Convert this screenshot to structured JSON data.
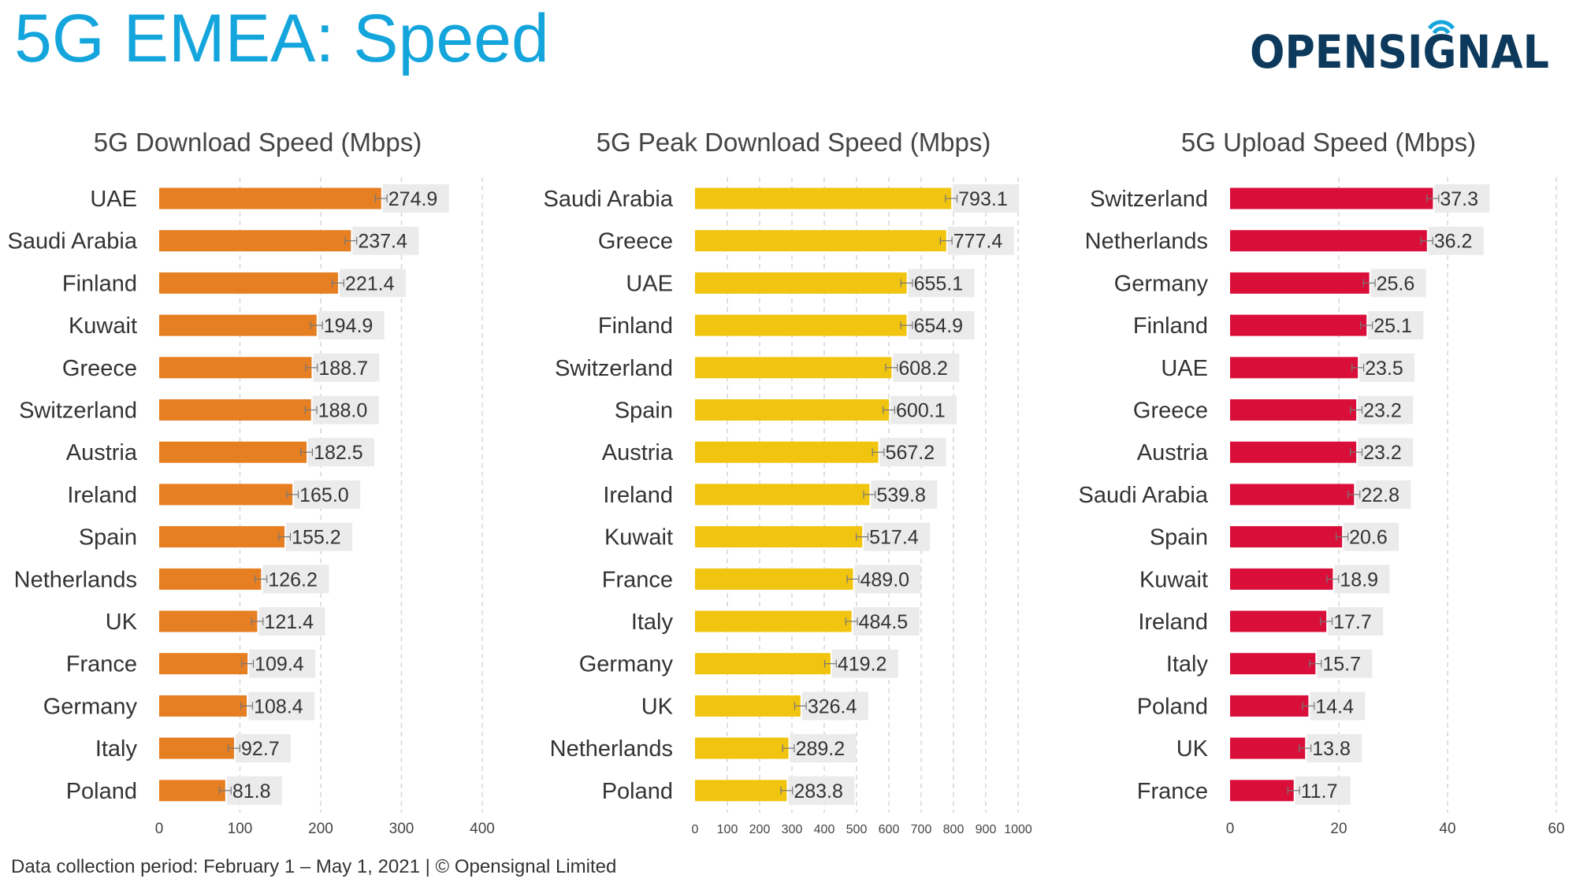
{
  "page": {
    "title": "5G EMEA: Speed",
    "logo": "OPENSIGNAL",
    "footer": "Data collection period: February 1 – May 1, 2021  |  © Opensignal Limited"
  },
  "colors": {
    "title": "#14a5dc",
    "logo": "#0d3a5c",
    "logo_accent": "#14a5dc",
    "download": "#e67e22",
    "peak": "#f1c40f",
    "upload": "#d90f3a",
    "label_bg": "#ebebeb"
  },
  "chart_data": [
    {
      "type": "bar",
      "orientation": "horizontal",
      "title": "5G Download Speed (Mbps)",
      "categories": [
        "UAE",
        "Saudi Arabia",
        "Finland",
        "Kuwait",
        "Greece",
        "Switzerland",
        "Austria",
        "Ireland",
        "Spain",
        "Netherlands",
        "UK",
        "France",
        "Germany",
        "Italy",
        "Poland"
      ],
      "values": [
        274.9,
        237.4,
        221.4,
        194.9,
        188.7,
        188.0,
        182.5,
        165.0,
        155.2,
        126.2,
        121.4,
        109.4,
        108.4,
        92.7,
        81.8
      ],
      "labels": [
        "274.9",
        "237.4",
        "221.4",
        "194.9",
        "188.7",
        "188.0",
        "182.5",
        "165.0",
        "155.2",
        "126.2",
        "121.4",
        "109.4",
        "108.4",
        "92.7",
        "81.8"
      ],
      "xlim": [
        0,
        400
      ],
      "xticks": [
        0,
        100,
        200,
        300,
        400
      ],
      "color": "#e67e22",
      "grid": true,
      "error_bars": true
    },
    {
      "type": "bar",
      "orientation": "horizontal",
      "title": "5G Peak Download Speed (Mbps)",
      "categories": [
        "Saudi Arabia",
        "Greece",
        "UAE",
        "Finland",
        "Switzerland",
        "Spain",
        "Austria",
        "Ireland",
        "Kuwait",
        "France",
        "Italy",
        "Germany",
        "UK",
        "Netherlands",
        "Poland"
      ],
      "values": [
        793.1,
        777.4,
        655.1,
        654.9,
        608.2,
        600.1,
        567.2,
        539.8,
        517.4,
        489.0,
        484.5,
        419.2,
        326.4,
        289.2,
        283.8
      ],
      "labels": [
        "793.1",
        "777.4",
        "655.1",
        "654.9",
        "608.2",
        "600.1",
        "567.2",
        "539.8",
        "517.4",
        "489.0",
        "484.5",
        "419.2",
        "326.4",
        "289.2",
        "283.8"
      ],
      "xlim": [
        0,
        1000
      ],
      "xticks": [
        0,
        100,
        200,
        300,
        400,
        500,
        600,
        700,
        800,
        900,
        1000
      ],
      "color": "#f1c40f",
      "grid": true,
      "error_bars": true
    },
    {
      "type": "bar",
      "orientation": "horizontal",
      "title": "5G Upload Speed (Mbps)",
      "categories": [
        "Switzerland",
        "Netherlands",
        "Germany",
        "Finland",
        "UAE",
        "Greece",
        "Austria",
        "Saudi Arabia",
        "Spain",
        "Kuwait",
        "Ireland",
        "Italy",
        "Poland",
        "UK",
        "France"
      ],
      "values": [
        37.3,
        36.2,
        25.6,
        25.1,
        23.5,
        23.2,
        23.2,
        22.8,
        20.6,
        18.9,
        17.7,
        15.7,
        14.4,
        13.8,
        11.7
      ],
      "labels": [
        "37.3",
        "36.2",
        "25.6",
        "25.1",
        "23.5",
        "23.2",
        "23.2",
        "22.8",
        "20.6",
        "18.9",
        "17.7",
        "15.7",
        "14.4",
        "13.8",
        "11.7"
      ],
      "xlim": [
        0,
        60
      ],
      "xticks": [
        0,
        20,
        40,
        60
      ],
      "color": "#d90f3a",
      "grid": true,
      "error_bars": true
    }
  ]
}
